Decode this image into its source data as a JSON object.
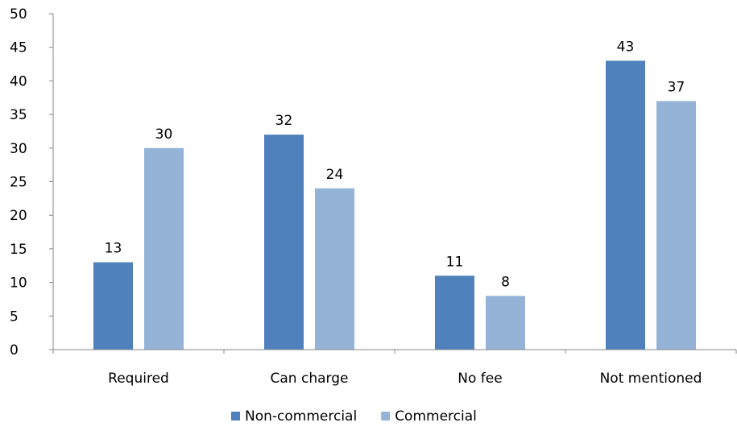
{
  "chart_data": {
    "type": "bar",
    "categories": [
      "Required",
      "Can charge",
      "No fee",
      "Not mentioned"
    ],
    "series": [
      {
        "name": "Non-commercial",
        "values": [
          13,
          32,
          11,
          43
        ],
        "color": "#4f81bd"
      },
      {
        "name": "Commercial",
        "values": [
          30,
          24,
          8,
          37
        ],
        "color": "#95b3d7"
      }
    ],
    "ylim": [
      0,
      50
    ],
    "yticks": [
      0,
      5,
      10,
      15,
      20,
      25,
      30,
      35,
      40,
      45,
      50
    ],
    "data_labels": true,
    "grid": false,
    "legend_position": "bottom"
  }
}
